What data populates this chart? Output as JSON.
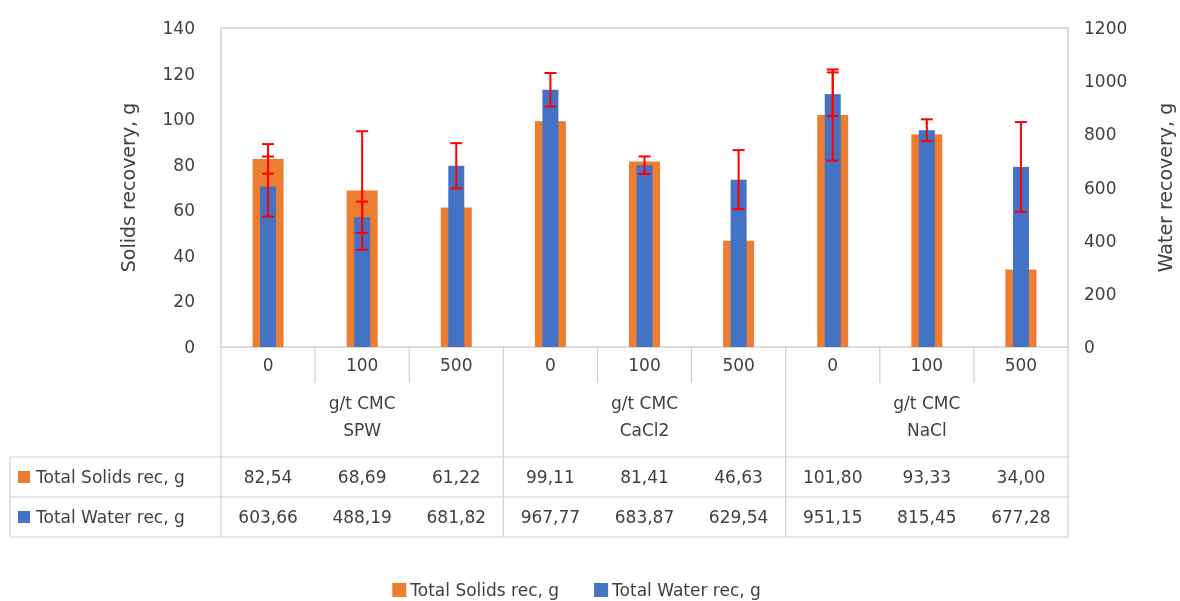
{
  "chart_data": {
    "type": "bar",
    "ylabel": "Solids recovery, g",
    "y2label": "Water recovery, g",
    "categories": [
      "0",
      "100",
      "500",
      "0",
      "100",
      "500",
      "0",
      "100",
      "500"
    ],
    "annotations": [
      "g/t CMC",
      "g/t CMC",
      "g/t CMC",
      "SPW",
      "CaCl2",
      "NaCl"
    ],
    "series": [
      {
        "name": "Total Solids rec, g",
        "color": "#ed7d31",
        "values": [
          82.54,
          68.69,
          61.22,
          99.11,
          81.41,
          46.63,
          101.8,
          93.33,
          34.0
        ],
        "value_labels": [
          "82,54",
          "68,69",
          "61,22",
          "99,11",
          "81,41",
          "46,63",
          "101,80",
          "93,33",
          "34,00"
        ],
        "errors": [
          6.5,
          26,
          null,
          null,
          null,
          null,
          20,
          null,
          null
        ]
      },
      {
        "name": "Total Water rec, g",
        "color": "#4472c4",
        "axis": "y2",
        "values": [
          603.66,
          488.19,
          681.82,
          967.77,
          683.87,
          629.54,
          951.15,
          815.45,
          677.28
        ],
        "value_labels": [
          "603,66",
          "488,19",
          "681,82",
          "967,77",
          "683,87",
          "629,54",
          "951,15",
          "815,45",
          "677,28"
        ],
        "errors": [
          113,
          59,
          85,
          63,
          33,
          111,
          82,
          41,
          169
        ]
      }
    ],
    "ylim": [
      0,
      140
    ],
    "yticks": [
      0,
      20,
      40,
      60,
      80,
      100,
      120,
      140
    ],
    "y2lim": [
      0,
      1200
    ],
    "y2ticks": [
      0,
      200,
      400,
      600,
      800,
      1000,
      1200
    ],
    "grid": false,
    "legend": "bottom"
  }
}
